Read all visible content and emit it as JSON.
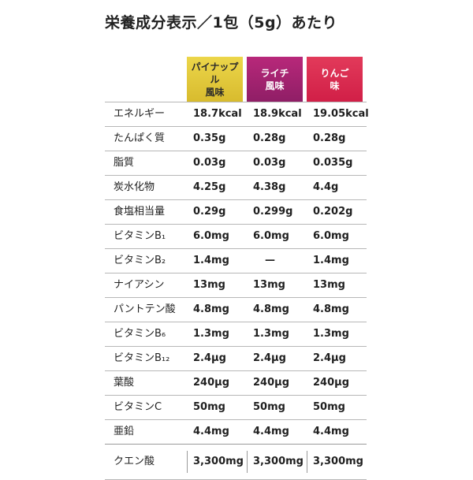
{
  "title": "栄養成分表示／1包（5g）あたり",
  "columns": [
    {
      "line1": "パイナップル",
      "line2": "風味",
      "color": "#d8bb2e"
    },
    {
      "line1": "ライチ",
      "line2": "風味",
      "color": "#8f1e66"
    },
    {
      "line1": "りんご",
      "line2": "味",
      "color": "#d11f47"
    }
  ],
  "rows": [
    {
      "label": "エネルギー",
      "values": [
        "18.7kcal",
        "18.9kcal",
        "19.05kcal"
      ]
    },
    {
      "label": "たんぱく質",
      "values": [
        "0.35g",
        "0.28g",
        "0.28g"
      ]
    },
    {
      "label": "脂質",
      "values": [
        "0.03g",
        "0.03g",
        "0.035g"
      ]
    },
    {
      "label": "炭水化物",
      "values": [
        "4.25g",
        "4.38g",
        "4.4g"
      ]
    },
    {
      "label": "食塩相当量",
      "values": [
        "0.29g",
        "0.299g",
        "0.202g"
      ]
    },
    {
      "label": "ビタミンB₁",
      "values": [
        "6.0mg",
        "6.0mg",
        "6.0mg"
      ]
    },
    {
      "label": "ビタミンB₂",
      "values": [
        "1.4mg",
        "—",
        "1.4mg"
      ]
    },
    {
      "label": "ナイアシン",
      "values": [
        "13mg",
        "13mg",
        "13mg"
      ]
    },
    {
      "label": "パントテン酸",
      "values": [
        "4.8mg",
        "4.8mg",
        "4.8mg"
      ]
    },
    {
      "label": "ビタミンB₆",
      "values": [
        "1.3mg",
        "1.3mg",
        "1.3mg"
      ]
    },
    {
      "label": "ビタミンB₁₂",
      "values": [
        "2.4μg",
        "2.4μg",
        "2.4μg"
      ]
    },
    {
      "label": "葉酸",
      "values": [
        "240μg",
        "240μg",
        "240μg"
      ]
    },
    {
      "label": "ビタミンC",
      "values": [
        "50mg",
        "50mg",
        "50mg"
      ]
    },
    {
      "label": "亜鉛",
      "values": [
        "4.4mg",
        "4.4mg",
        "4.4mg"
      ]
    },
    {
      "label": "クエン酸",
      "values": [
        "3,300mg",
        "3,300mg",
        "3,300mg"
      ]
    }
  ]
}
